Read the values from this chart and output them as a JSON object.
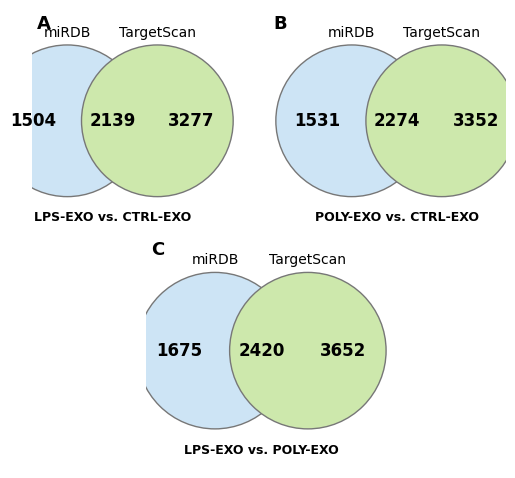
{
  "panels": [
    {
      "label": "A",
      "title": "LPS-EXO vs. CTRL-EXO",
      "left_label": "miRDB",
      "right_label": "TargetScan",
      "left_only": "1504",
      "overlap": "2139",
      "right_only": "3277",
      "clip_left": true,
      "clip_right": false
    },
    {
      "label": "B",
      "title": "POLY-EXO vs. CTRL-EXO",
      "left_label": "miRDB",
      "right_label": "TargetScan",
      "left_only": "1531",
      "overlap": "2274",
      "right_only": "3352",
      "clip_left": false,
      "clip_right": true
    },
    {
      "label": "C",
      "title": "LPS-EXO vs. POLY-EXO",
      "left_label": "miRDB",
      "right_label": "TargetScan",
      "left_only": "1675",
      "overlap": "2420",
      "right_only": "3652",
      "clip_left": false,
      "clip_right": false
    }
  ],
  "circle_color_blue": "#cde4f5",
  "circle_color_green": "#cde8ac",
  "circle_edge_color": "#777777",
  "text_color": "#000000",
  "background_color": "#ffffff",
  "label_fontsize": 10,
  "number_fontsize": 12,
  "title_fontsize": 9,
  "panel_label_fontsize": 13
}
